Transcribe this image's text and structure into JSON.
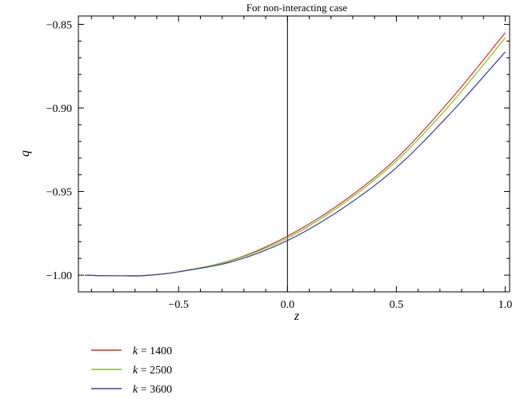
{
  "chart_data": {
    "type": "line",
    "title": "For non-interacting case",
    "xlabel": "z",
    "ylabel": "q",
    "xlim": [
      -0.96,
      1.02
    ],
    "ylim": [
      -1.01,
      -0.845
    ],
    "xticks": [
      -0.5,
      0.0,
      0.5,
      1.0
    ],
    "xtick_labels": [
      "−0.5",
      "0.0",
      "0.5",
      "1.0"
    ],
    "yticks": [
      -0.85,
      -0.9,
      -0.95,
      -1.0
    ],
    "ytick_labels": [
      "−0.85",
      "−0.90",
      "−0.95",
      "−1.00"
    ],
    "grid": false,
    "legend_position": "bottom-left, below plot",
    "x": [
      -0.93,
      -0.85,
      -0.75,
      -0.65,
      -0.5,
      -0.25,
      0.0,
      0.25,
      0.5,
      0.75,
      1.0
    ],
    "series": [
      {
        "name": "k = 1400",
        "color": "#d0312d",
        "values": [
          -1.0,
          -1.0003,
          -1.0004,
          -1.0002,
          -0.998,
          -0.9908,
          -0.9767,
          -0.9565,
          -0.9302,
          -0.8949,
          -0.855
        ]
      },
      {
        "name": "k = 2500",
        "color": "#7ac41c",
        "values": [
          -1.0,
          -1.0003,
          -1.0004,
          -1.0002,
          -0.998,
          -0.991,
          -0.9778,
          -0.9578,
          -0.9318,
          -0.8975,
          -0.858
        ]
      },
      {
        "name": "k = 3600",
        "color": "#3a3fa0",
        "values": [
          -1.0,
          -1.0003,
          -1.0004,
          -1.0002,
          -0.998,
          -0.9918,
          -0.9793,
          -0.9603,
          -0.9357,
          -0.903,
          -0.8665
        ]
      }
    ],
    "legend": [
      {
        "var": "k",
        "rest": " = 1400"
      },
      {
        "var": "k",
        "rest": " = 2500"
      },
      {
        "var": "k",
        "rest": " = 3600"
      }
    ]
  }
}
